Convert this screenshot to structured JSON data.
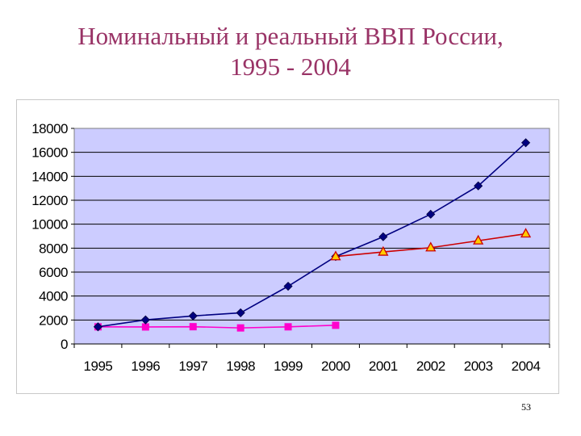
{
  "slide": {
    "title_line1": "Номинальный и реальный ВВП России,",
    "title_line2": "1995 - 2004",
    "page_number": "53"
  },
  "colors": {
    "title": "#993366",
    "plot_background": "#CCCCFF",
    "nominal_line": "#000080",
    "real_line": "#CC0000",
    "real_marker_fill": "#FFCC00",
    "pink_series": "#FF00CC"
  },
  "chart_data": {
    "type": "line",
    "x": [
      "1995",
      "1996",
      "1997",
      "1998",
      "1999",
      "2000",
      "2001",
      "2002",
      "2003",
      "2004"
    ],
    "ylim": [
      0,
      18000
    ],
    "yticks": [
      "0",
      "2000",
      "4000",
      "6000",
      "8000",
      "10000",
      "12000",
      "14000",
      "16000",
      "18000"
    ],
    "grid": true,
    "legend": "none",
    "title": "",
    "xlabel": "",
    "ylabel": "",
    "series": [
      {
        "marker": "diamond",
        "color": "#000080",
        "values": [
          1430,
          2010,
          2340,
          2600,
          4820,
          7300,
          8950,
          10830,
          13200,
          16800
        ]
      },
      {
        "marker": "square",
        "color": "#FF00CC",
        "values": [
          1430,
          1420,
          1440,
          1340,
          1430,
          1560,
          null,
          null,
          null,
          null
        ]
      },
      {
        "marker": "triangle",
        "color": "#CC0000",
        "values": [
          null,
          null,
          null,
          null,
          null,
          7300,
          7680,
          8040,
          8620,
          9200
        ]
      }
    ]
  }
}
